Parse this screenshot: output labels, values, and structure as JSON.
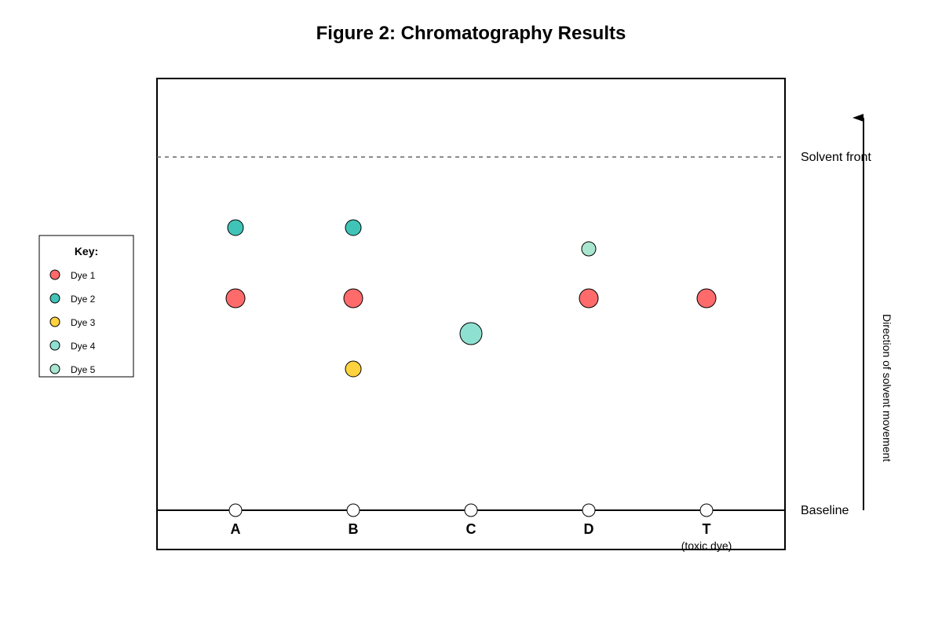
{
  "title": "Figure 2: Chromatography Results",
  "labels": {
    "solvent_front": "Solvent front",
    "baseline": "Baseline",
    "direction": "Direction of solvent movement"
  },
  "key": {
    "heading": "Key:",
    "items": [
      {
        "label": "Dye 1",
        "color": "#ff6b6b"
      },
      {
        "label": "Dye 2",
        "color": "#40c4b8"
      },
      {
        "label": "Dye 3",
        "color": "#ffd23f"
      },
      {
        "label": "Dye 4",
        "color": "#8ee0d0"
      },
      {
        "label": "Dye 5",
        "color": "#a8e6cf"
      }
    ]
  },
  "lanes": [
    {
      "label": "A",
      "note": ""
    },
    {
      "label": "B",
      "note": ""
    },
    {
      "label": "C",
      "note": ""
    },
    {
      "label": "D",
      "note": ""
    },
    {
      "label": "T",
      "note": "(toxic dye)"
    }
  ],
  "spots": [
    {
      "lane": 0,
      "dye": 1,
      "rf": 0.8,
      "size": "normal"
    },
    {
      "lane": 0,
      "dye": 0,
      "rf": 0.6,
      "size": "large"
    },
    {
      "lane": 1,
      "dye": 1,
      "rf": 0.8,
      "size": "normal"
    },
    {
      "lane": 1,
      "dye": 0,
      "rf": 0.6,
      "size": "large"
    },
    {
      "lane": 1,
      "dye": 2,
      "rf": 0.4,
      "size": "normal"
    },
    {
      "lane": 2,
      "dye": 3,
      "rf": 0.5,
      "size": "xlarge"
    },
    {
      "lane": 3,
      "dye": 4,
      "rf": 0.74,
      "size": "small"
    },
    {
      "lane": 3,
      "dye": 0,
      "rf": 0.6,
      "size": "large"
    },
    {
      "lane": 4,
      "dye": 0,
      "rf": 0.6,
      "size": "large"
    }
  ]
}
